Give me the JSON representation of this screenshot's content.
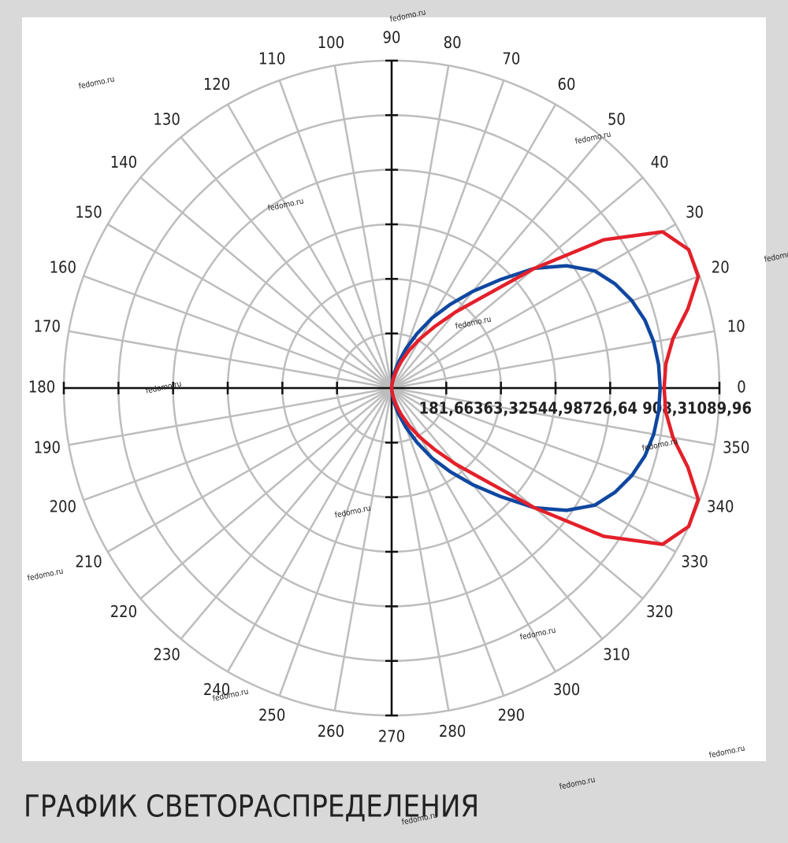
{
  "chart_data": {
    "type": "polar",
    "title": "ГРАФИК СВЕТОРАСПРЕДЕЛЕНИЯ",
    "watermark": "fedomo.ru",
    "x": [
      270,
      275,
      280,
      285,
      290,
      295,
      300,
      305,
      310,
      315,
      320,
      325,
      330,
      335,
      340,
      345,
      350,
      355,
      0,
      5,
      10,
      15,
      20,
      25,
      30,
      35,
      40,
      45,
      50,
      55,
      60,
      65,
      70,
      75,
      80,
      85,
      90
    ],
    "series": [
      {
        "color": "#0f47a0",
        "values": [
          0,
          20,
          50,
          90,
          140,
          200,
          270,
          340,
          420,
          510,
          620,
          710,
          780,
          820,
          850,
          872,
          885,
          891,
          893,
          891,
          885,
          872,
          850,
          820,
          780,
          710,
          620,
          510,
          420,
          340,
          270,
          200,
          140,
          90,
          50,
          20,
          0
        ]
      },
      {
        "color": "#e3202a",
        "values": [
          0,
          10,
          30,
          60,
          95,
          140,
          190,
          250,
          330,
          430,
          620,
          860,
          1040,
          1090,
          1085,
          1020,
          950,
          915,
          906,
          915,
          950,
          1020,
          1085,
          1090,
          1040,
          860,
          620,
          430,
          330,
          250,
          190,
          140,
          95,
          60,
          30,
          10,
          0
        ]
      }
    ],
    "rlim": [
      0,
      1089.96
    ],
    "rticks": [
      {
        "value": 181.66,
        "label": "181,66"
      },
      {
        "value": 363.32,
        "label": "363,32"
      },
      {
        "value": 544.98,
        "label": "544,98"
      },
      {
        "value": 726.64,
        "label": "726,64"
      },
      {
        "value": 908.3,
        "label": "908,3"
      },
      {
        "value": 1089.96,
        "label": "1089,96"
      }
    ],
    "thetaticks": [
      0,
      10,
      20,
      30,
      40,
      50,
      60,
      70,
      80,
      90,
      100,
      110,
      120,
      130,
      140,
      150,
      160,
      170,
      180,
      190,
      200,
      210,
      220,
      230,
      240,
      250,
      260,
      270,
      280,
      290,
      300,
      310,
      320,
      330,
      340,
      350
    ],
    "grid": true
  }
}
